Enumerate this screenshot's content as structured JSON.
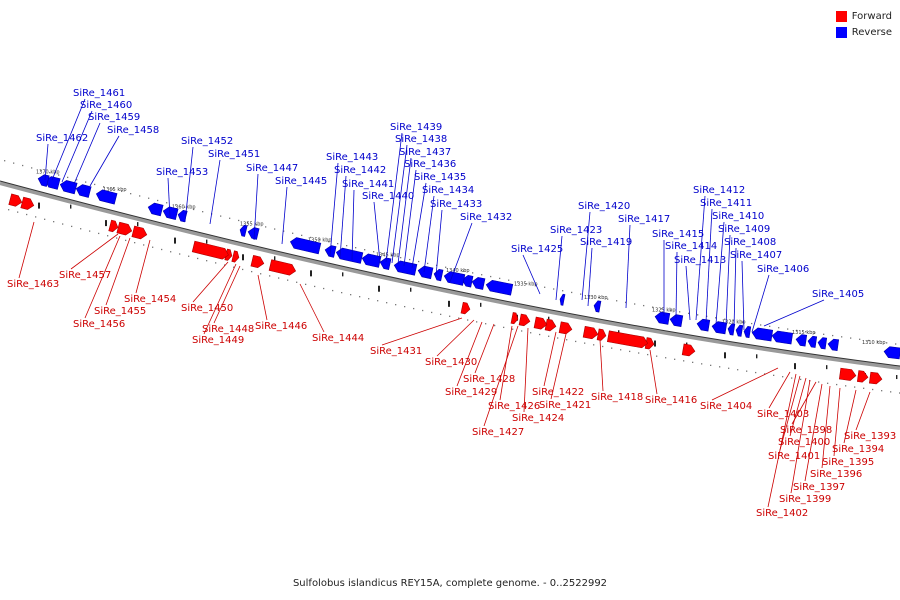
{
  "caption": "Sulfolobus islandicus REY15A, complete genome. - 0..2522992",
  "legend": [
    {
      "label": "Forward",
      "color": "#ff0000"
    },
    {
      "label": "Reverse",
      "color": "#0000ff"
    }
  ],
  "scale_ticks": [
    "1370 kbp",
    "1365 kbp",
    "1360 kbp",
    "1355 kbp",
    "1350 kbp",
    "1345 kbp",
    "1340 kbp",
    "1335 kbp",
    "1330 kbp",
    "1325 kbp",
    "1320 kbp",
    "1315 kbp",
    "1310 kbp"
  ],
  "genes": [
    {
      "name": "SiRe_1393",
      "strand": "forward"
    },
    {
      "name": "SiRe_1394",
      "strand": "forward"
    },
    {
      "name": "SiRe_1395",
      "strand": "forward"
    },
    {
      "name": "SiRe_1396",
      "strand": "forward"
    },
    {
      "name": "SiRe_1397",
      "strand": "forward"
    },
    {
      "name": "SiRe_1398",
      "strand": "forward"
    },
    {
      "name": "SiRe_1399",
      "strand": "forward"
    },
    {
      "name": "SiRe_1400",
      "strand": "forward"
    },
    {
      "name": "SiRe_1401",
      "strand": "forward"
    },
    {
      "name": "SiRe_1402",
      "strand": "forward"
    },
    {
      "name": "SiRe_1403",
      "strand": "forward"
    },
    {
      "name": "SiRe_1404",
      "strand": "forward"
    },
    {
      "name": "SiRe_1405",
      "strand": "reverse"
    },
    {
      "name": "SiRe_1406",
      "strand": "reverse"
    },
    {
      "name": "SiRe_1407",
      "strand": "reverse"
    },
    {
      "name": "SiRe_1408",
      "strand": "reverse"
    },
    {
      "name": "SiRe_1409",
      "strand": "reverse"
    },
    {
      "name": "SiRe_1410",
      "strand": "reverse"
    },
    {
      "name": "SiRe_1411",
      "strand": "reverse"
    },
    {
      "name": "SiRe_1412",
      "strand": "reverse"
    },
    {
      "name": "SiRe_1413",
      "strand": "reverse"
    },
    {
      "name": "SiRe_1414",
      "strand": "reverse"
    },
    {
      "name": "SiRe_1415",
      "strand": "reverse"
    },
    {
      "name": "SiRe_1416",
      "strand": "forward"
    },
    {
      "name": "SiRe_1417",
      "strand": "reverse"
    },
    {
      "name": "SiRe_1418",
      "strand": "forward"
    },
    {
      "name": "SiRe_1419",
      "strand": "reverse"
    },
    {
      "name": "SiRe_1420",
      "strand": "reverse"
    },
    {
      "name": "SiRe_1421",
      "strand": "forward"
    },
    {
      "name": "SiRe_1422",
      "strand": "forward"
    },
    {
      "name": "SiRe_1423",
      "strand": "reverse"
    },
    {
      "name": "SiRe_1424",
      "strand": "forward"
    },
    {
      "name": "SiRe_1425",
      "strand": "reverse"
    },
    {
      "name": "SiRe_1426",
      "strand": "forward"
    },
    {
      "name": "SiRe_1427",
      "strand": "forward"
    },
    {
      "name": "SiRe_1428",
      "strand": "forward"
    },
    {
      "name": "SiRe_1429",
      "strand": "forward"
    },
    {
      "name": "SiRe_1430",
      "strand": "forward"
    },
    {
      "name": "SiRe_1431",
      "strand": "forward"
    },
    {
      "name": "SiRe_1432",
      "strand": "reverse"
    },
    {
      "name": "SiRe_1433",
      "strand": "reverse"
    },
    {
      "name": "SiRe_1434",
      "strand": "reverse"
    },
    {
      "name": "SiRe_1435",
      "strand": "reverse"
    },
    {
      "name": "SiRe_1436",
      "strand": "reverse"
    },
    {
      "name": "SiRe_1437",
      "strand": "reverse"
    },
    {
      "name": "SiRe_1438",
      "strand": "reverse"
    },
    {
      "name": "SiRe_1439",
      "strand": "reverse"
    },
    {
      "name": "SiRe_1440",
      "strand": "reverse"
    },
    {
      "name": "SiRe_1441",
      "strand": "reverse"
    },
    {
      "name": "SiRe_1442",
      "strand": "reverse"
    },
    {
      "name": "SiRe_1443",
      "strand": "reverse"
    },
    {
      "name": "SiRe_1444",
      "strand": "forward"
    },
    {
      "name": "SiRe_1445",
      "strand": "reverse"
    },
    {
      "name": "SiRe_1446",
      "strand": "forward"
    },
    {
      "name": "SiRe_1447",
      "strand": "reverse"
    },
    {
      "name": "SiRe_1448",
      "strand": "forward"
    },
    {
      "name": "SiRe_1449",
      "strand": "forward"
    },
    {
      "name": "SiRe_1450",
      "strand": "forward"
    },
    {
      "name": "SiRe_1451",
      "strand": "reverse"
    },
    {
      "name": "SiRe_1452",
      "strand": "reverse"
    },
    {
      "name": "SiRe_1453",
      "strand": "reverse"
    },
    {
      "name": "SiRe_1454",
      "strand": "forward"
    },
    {
      "name": "SiRe_1455",
      "strand": "forward"
    },
    {
      "name": "SiRe_1456",
      "strand": "forward"
    },
    {
      "name": "SiRe_1457",
      "strand": "forward"
    },
    {
      "name": "SiRe_1458",
      "strand": "reverse"
    },
    {
      "name": "SiRe_1459",
      "strand": "reverse"
    },
    {
      "name": "SiRe_1460",
      "strand": "reverse"
    },
    {
      "name": "SiRe_1461",
      "strand": "reverse"
    },
    {
      "name": "SiRe_1462",
      "strand": "reverse"
    },
    {
      "name": "SiRe_1463",
      "strand": "forward"
    }
  ]
}
